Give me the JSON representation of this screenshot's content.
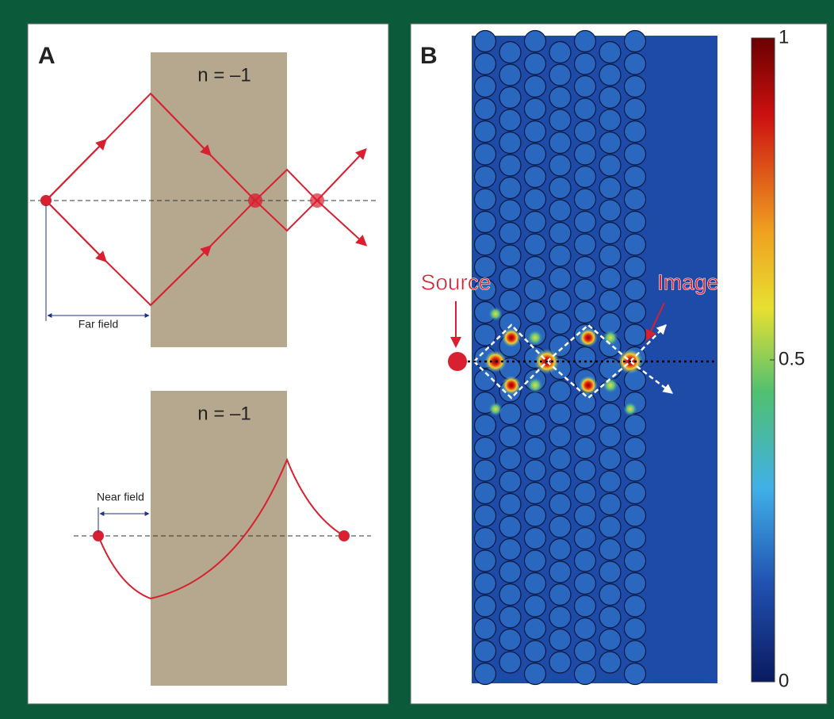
{
  "panel_a": {
    "label": "A",
    "top": {
      "medium": "n = –1",
      "annotation": "Far field"
    },
    "bottom": {
      "medium": "n = –1",
      "annotation": "Near field"
    }
  },
  "panel_b": {
    "label": "B",
    "source": "Source",
    "image": "Image",
    "colorbar": {
      "range": [
        0,
        1
      ],
      "ticks": [
        1,
        0.5,
        0
      ]
    }
  }
}
